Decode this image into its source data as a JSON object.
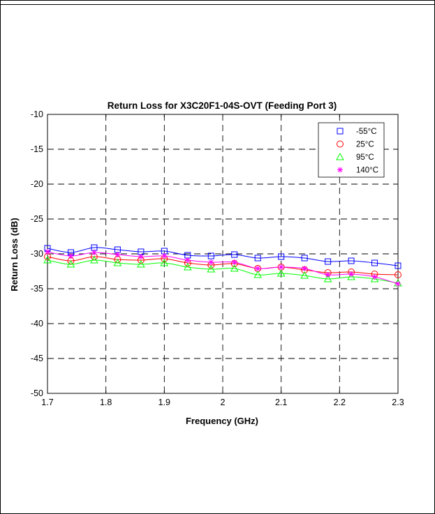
{
  "chart_data": {
    "type": "line",
    "title": "Return Loss for X3C20F1-04S-OVT (Feeding Port 3)",
    "xlabel": "Frequency (GHz)",
    "ylabel": "Return Loss (dB)",
    "xlim": [
      1.7,
      2.3
    ],
    "ylim": [
      -50,
      -10
    ],
    "xticks": [
      "1.7",
      "1.8",
      "1.9",
      "2",
      "2.1",
      "2.2",
      "2.3"
    ],
    "yticks": [
      "-10",
      "-15",
      "-20",
      "-25",
      "-30",
      "-35",
      "-40",
      "-45",
      "-50"
    ],
    "grid": true,
    "legend_position": "top-right",
    "x": [
      1.7,
      1.74,
      1.78,
      1.82,
      1.86,
      1.9,
      1.94,
      1.98,
      2.02,
      2.06,
      2.1,
      2.14,
      2.18,
      2.22,
      2.26,
      2.3
    ],
    "series": [
      {
        "name": "-55°C",
        "color": "#0000ff",
        "marker": "square",
        "values": [
          -29.2,
          -29.8,
          -29.1,
          -29.4,
          -29.7,
          -29.6,
          -30.2,
          -30.3,
          -30.1,
          -30.6,
          -30.4,
          -30.6,
          -31.1,
          -31.0,
          -31.3,
          -31.7
        ]
      },
      {
        "name": "25°C",
        "color": "#ff0000",
        "marker": "circle",
        "values": [
          -30.4,
          -31.0,
          -30.4,
          -30.8,
          -30.9,
          -30.7,
          -31.3,
          -31.6,
          -31.4,
          -32.1,
          -31.9,
          -32.3,
          -32.7,
          -32.6,
          -32.9,
          -33.0
        ]
      },
      {
        "name": "95°C",
        "color": "#00ff00",
        "marker": "triangle",
        "values": [
          -30.9,
          -31.5,
          -30.9,
          -31.3,
          -31.5,
          -31.3,
          -31.9,
          -32.2,
          -32.1,
          -33.0,
          -32.8,
          -33.1,
          -33.6,
          -33.3,
          -33.6,
          -34.2
        ]
      },
      {
        "name": "140°C",
        "color": "#ff00ff",
        "marker": "asterisk",
        "values": [
          -29.7,
          -30.3,
          -29.8,
          -30.1,
          -30.4,
          -30.3,
          -30.9,
          -31.2,
          -31.2,
          -32.1,
          -31.9,
          -32.1,
          -33.0,
          -32.9,
          -33.3,
          -34.3
        ]
      }
    ]
  }
}
